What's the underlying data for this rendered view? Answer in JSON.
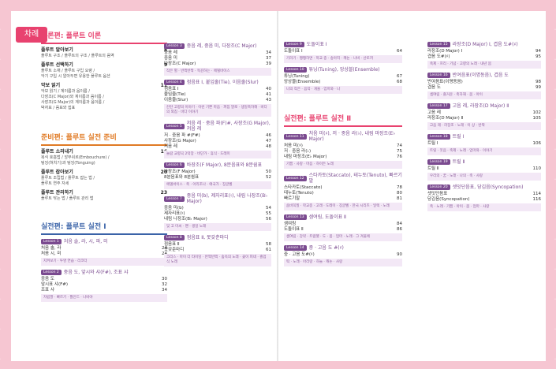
{
  "tag": "차례",
  "left": {
    "sec1": {
      "title": "이론편: 플루트 이론",
      "groups": [
        {
          "head": "플루트 알아보기",
          "page": "8",
          "items": [
            "플루트 구조 / 플루트의 구조 / 플루트의 음역"
          ]
        },
        {
          "head": "플루트 선택하기",
          "page": "9",
          "items": [
            "플루트 소재 / 플루트 구입 요령 /",
            "악기 구입 시 알아두면 유용한 플루트 옵션"
          ]
        },
        {
          "head": "악보 읽기",
          "page": "11",
          "items": [
            "악보 읽기 / 계이름과 음이름 /",
            "다장조(C Major)와 계이름과 음이름 /",
            "사장조(G Major)의 계이름과 음이름 /",
            "박자표 / 음표와 쉼표"
          ]
        }
      ]
    },
    "sec2": {
      "title": "준비편: 플루트 실전 준비",
      "groups": [
        {
          "head": "플루트 소리내기",
          "page": "16",
          "items": [
            "복식 호흡법 / 앙부쉬르(Embouchure) /",
            "텅잉(혀치기)과 텅잉(Tonguing)"
          ]
        },
        {
          "head": "플루트 잡아보기",
          "page": "20",
          "items": [
            "플루트 조립법 / 플루트 잡는 법 /",
            "플루트 연주 자세"
          ]
        },
        {
          "head": "플루트 관리하기",
          "page": "23",
          "items": [
            "플루트 닦는 법 / 플루트 관리 법"
          ]
        }
      ]
    },
    "sec3": {
      "title": "실전편: 플루트 실전 Ⅰ",
      "lessons": [
        {
          "badge": "Lesson 1",
          "title": "처음 솔, 라, 시, 파, 미",
          "rows": [
            [
              "처음 솔, 라",
              "24"
            ],
            [
              "처음 시, 미",
              "24"
            ]
          ],
          "box": "지켜보기 · 투명 연습 · 리코더"
        },
        {
          "badge": "Lesson 2",
          "title": "중음 도, 앞시와 샤(F#), 조표 샤",
          "rows": [
            [
              "중음 도",
              "30"
            ],
            [
              "앞시표 샤(F#)",
              "32"
            ],
            [
              "조표 샤",
              "34"
            ]
          ],
          "box": "자립팔 · 빠르기 · 월인드 · 나비야"
        }
      ]
    },
    "col2": {
      "lessons": [
        {
          "badge": "Lesson 3",
          "title": "중음 레, 중음 미, 다장조(C Major)",
          "rows": [
            [
              "중음 레",
              "34"
            ],
            [
              "중음 미",
              "37"
            ],
            [
              "다장조(C Major)",
              "39"
            ]
          ],
          "box": "작은 별 · 반짝반짝 · 독감하는 · 에델바이스"
        },
        {
          "badge": "Lesson 4",
          "title": "점음표 Ⅰ, 붙임줄(Tie), 이음줄(Slur)",
          "rows": [
            [
              "점음표 Ⅰ",
              "40"
            ],
            [
              "붙임줄(Tie)",
              "41"
            ],
            [
              "이음줄(Slur)",
              "43"
            ]
          ],
          "box": "잔잔 고향의 이야기 · 이런 기쁜 마음 · 퍼짐 말로 · 생일축하해 · 바다의 외침 · 바다 이야기"
        },
        {
          "badge": "Lesson 5",
          "title": "저음 레 · 중음 파(F)#, 사장조(G Major), 저음 레",
          "rows": [
            [
              "저 · 중음 파 #(F#)",
              "46"
            ],
            [
              "사장조(G Major)",
              "47"
            ],
            [
              "저음 레",
              "48"
            ]
          ],
          "box": "놀람 교향곡 2악장 · 비단가 · 휴식 · 도레미"
        },
        {
          "badge": "Lesson 6",
          "title": "바장조(F Major), 8분음표와 8분쉼표",
          "rows": [
            [
              "바장조(F Major)",
              "50"
            ],
            [
              "8분음표와 8분쉼표",
              "52"
            ]
          ],
          "box": "에델바이스 · 축 · 아리조나 · 애국가 · 징글벨"
        },
        {
          "badge": "Lesson 7",
          "title": "중음 미(b), 제자리표(♮), 내림 나장조(B♭ Major)",
          "rows": [
            [
              "중음 미(b)",
              "54"
            ],
            [
              "제자리표(♮)",
              "55"
            ],
            [
              "내림 나장조(B♭ Major)",
              "56"
            ]
          ],
          "box": "잊 고 미씨 · 팬 · 생일 노래"
        },
        {
          "badge": "Lesson 8",
          "title": "점음표 Ⅱ, 못갖춘마디",
          "rows": [
            [
              "점음표 Ⅱ",
              "58"
            ],
            [
              "못갖춘마디",
              "61"
            ]
          ],
          "box": "크리스 · 마이 더 타이밍 · 반짝반짝 · 숲속의 노래 · 꽃이 피네 · 졸업식 노래"
        }
      ]
    },
    "right": {
      "col1": {
        "lessons": [
          {
            "badge": "Lesson 9",
            "title": "도돌이표 Ⅰ",
            "rows": [
              [
                "도돌이표 Ⅰ",
                "64"
              ]
            ],
            "box": "기러기 · 쨍쨍하면 · 학교 종 · 송아지 · 캐논 · 나비 · 산토끼"
          },
          {
            "badge": "Lesson 10",
            "title": "튜닝(Tuning), 앙상블(Ensemble)",
            "rows": [
              [
                "튜닝(Tuning)",
                "67"
              ],
              [
                "앙상블(Ensemble)",
                "68"
              ]
            ],
            "box": "나의 작은 · 음악 · 개울 · 엄마와 · 나"
          }
        ],
        "sec": "실전편: 플루트 실전 Ⅱ",
        "lessons2": [
          {
            "badge": "Lesson 11",
            "title": "처음 미(♯), 저 · 중음 라(♭), 내림 마장조(E♭ Major)",
            "rows": [
              [
                "처음 미(♯)",
                "74"
              ],
              [
                "저 · 중음 라(♭)",
                "75"
              ],
              [
                "내림 마장조(E♭ Major)",
                "76"
              ]
            ],
            "box": "기쁨 · 사랑 · 마음 · 하이든 노래"
          },
          {
            "badge": "Lesson 12",
            "title": "스타카토(Staccato), 테누토(Tenuto), 빠르기말",
            "rows": [
              [
                "스타카토(Staccato)",
                "78"
              ],
              [
                "테누토(Tenuto)",
                "80"
              ],
              [
                "빠르기말",
                "81"
              ]
            ],
            "box": "숨바꼭질 · 학교종 · 고래 · 도레미 · 징글벨 · 한국 시리즈 · 일렉 · 노래"
          },
          {
            "badge": "Lesson 13",
            "title": "셈여림, 도돌이표 Ⅱ",
            "rows": [
              [
                "셈여림",
                "84"
              ],
              [
                "도돌이표 Ⅱ",
                "86"
              ]
            ],
            "box": "셈여림 · 강약 · 트럼펫 · 도 · 봄 · 엄마 · 노래 · 그 겨울에"
          },
          {
            "badge": "Lesson 14",
            "title": "중 · 고음 도 #(♯)",
            "rows": [
              [
                "중 · 고음 도#(♯)",
                "90"
              ]
            ],
            "box": "떡 · 노래 · 아리랑 · 하늘 · 캐논 · 사랑"
          }
        ]
      },
      "col2": {
        "lessons": [
          {
            "badge": "Lesson 15",
            "title": "라장조(D Major) Ⅰ, 겹음 도#(♯)",
            "rows": [
              [
                "라장조(D Major) Ⅰ",
                "94"
              ],
              [
                "겹음 도#(♯)",
                "95"
              ]
            ],
            "box": "축제 · 프리 · 기념 · 고향의 노래 · 내년 봄"
          },
          {
            "badge": "Lesson 16",
            "title": "반여음표(이명동음), 겹음 도",
            "rows": [
              [
                "반여음표(이명동음)",
                "98"
              ],
              [
                "겹음 도",
                "99"
              ]
            ],
            "box": "셈여림 · 즐거운 · 축하해 · 봄 · 아이"
          },
          {
            "badge": "Lesson 17",
            "title": "고음 레, 라장조(D Major) Ⅱ",
            "rows": [
              [
                "고음 레",
                "102"
              ],
              [
                "라장조(D Major) Ⅱ",
                "105"
              ]
            ],
            "box": "고음 레 · 라장조 · 노래 · 이 상 · 반짝"
          },
          {
            "badge": "Lesson 18",
            "title": "트릴 Ⅰ",
            "rows": [
              [
                "트릴 Ⅰ",
                "106"
              ]
            ],
            "box": "트릴 · 웃음 · 축제 · 노래 · 엄마와 · 이야기"
          },
          {
            "badge": "Lesson 19",
            "title": "트릴 Ⅱ",
            "rows": [
              [
                "트릴 Ⅱ",
                "110"
              ]
            ],
            "box": "우리의 · 꿈 · 노래 · 나의 · 축 · 사랑"
          },
          {
            "badge": "Lesson 20",
            "title": "셋잇단음표, 당김음(Syncopation)",
            "rows": [
              [
                "셋잇단음표",
                "114"
              ],
              [
                "당김음(Syncopation)",
                "116"
              ]
            ],
            "box": "축 · 노래 · 기쁨 · 아이 · 봄 · 엄마 · 사랑"
          }
        ]
      }
    }
  }
}
